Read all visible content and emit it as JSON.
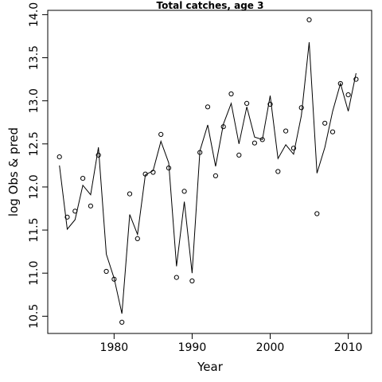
{
  "chart_data": {
    "type": "line",
    "title": "Total catches, age 3",
    "xlabel": "Year",
    "ylabel": "log Obs & pred",
    "xlim": [
      1971.5,
      2013
    ],
    "ylim": [
      10.3,
      14.05
    ],
    "x_ticks": [
      1980,
      1990,
      2000,
      2010
    ],
    "y_ticks": [
      10.5,
      11.0,
      11.5,
      12.0,
      12.5,
      13.0,
      13.5,
      14.0
    ],
    "x_tick_labels": [
      "1980",
      "1990",
      "2000",
      "2010"
    ],
    "y_tick_labels": [
      "10.5",
      "11.0",
      "11.5",
      "12.0",
      "12.5",
      "13.0",
      "13.5",
      "14.0"
    ],
    "grid": false,
    "legend": "none",
    "x": [
      1973,
      1974,
      1975,
      1976,
      1977,
      1978,
      1979,
      1980,
      1981,
      1982,
      1983,
      1984,
      1985,
      1986,
      1987,
      1988,
      1989,
      1990,
      1991,
      1992,
      1993,
      1994,
      1995,
      1996,
      1997,
      1998,
      1999,
      2000,
      2001,
      2002,
      2003,
      2004,
      2005,
      2006,
      2007,
      2008,
      2009,
      2010,
      2011
    ],
    "series": [
      {
        "style": "points",
        "values": [
          12.35,
          11.65,
          11.72,
          12.1,
          11.78,
          12.37,
          11.02,
          10.93,
          10.43,
          11.92,
          11.4,
          12.15,
          12.17,
          12.61,
          12.22,
          10.95,
          11.95,
          10.91,
          12.4,
          12.93,
          12.13,
          12.7,
          13.08,
          12.37,
          12.97,
          12.51,
          12.55,
          12.96,
          12.18,
          12.65,
          12.45,
          12.92,
          13.94,
          11.69,
          12.74,
          12.64,
          13.2,
          13.07,
          13.25
        ]
      },
      {
        "style": "line",
        "values": [
          12.25,
          11.51,
          11.62,
          12.02,
          11.91,
          12.46,
          11.22,
          10.94,
          10.53,
          11.68,
          11.45,
          12.14,
          12.19,
          12.53,
          12.28,
          11.08,
          11.83,
          11.0,
          12.42,
          12.72,
          12.24,
          12.73,
          12.97,
          12.5,
          12.93,
          12.58,
          12.55,
          13.06,
          12.33,
          12.49,
          12.38,
          12.83,
          13.68,
          12.16,
          12.46,
          12.88,
          13.2,
          12.88,
          13.32
        ]
      }
    ]
  }
}
